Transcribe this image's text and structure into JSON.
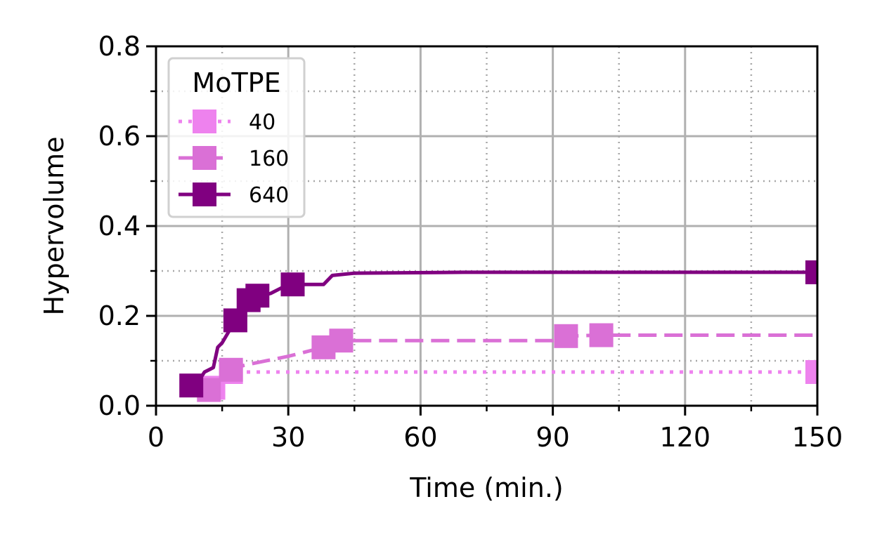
{
  "chart_data": {
    "type": "line",
    "xlabel": "Time (min.)",
    "ylabel": "Hypervolume",
    "xlim": [
      0,
      150
    ],
    "ylim": [
      0,
      0.8
    ],
    "x_major_ticks": [
      0,
      30,
      60,
      90,
      120,
      150
    ],
    "x_minor_ticks": [
      15,
      45,
      75,
      105,
      135
    ],
    "y_major_ticks": [
      0.0,
      0.2,
      0.4,
      0.6,
      0.8
    ],
    "y_minor_ticks": [
      0.1,
      0.3,
      0.5,
      0.7
    ],
    "x_tick_labels": [
      "0",
      "30",
      "60",
      "90",
      "120",
      "150"
    ],
    "y_tick_labels": [
      "0.0",
      "0.2",
      "0.4",
      "0.6",
      "0.8"
    ],
    "grid": {
      "major": "solid",
      "minor": "dotted"
    },
    "legend": {
      "title": "MoTPE",
      "placement": "top-left"
    },
    "series": [
      {
        "name": "40",
        "color": "#ee82ee",
        "line_style": "dotted",
        "marker": "square",
        "points": [
          [
            13,
            0.04
          ],
          [
            17,
            0.075
          ],
          [
            20,
            0.075
          ],
          [
            150,
            0.075
          ]
        ],
        "marker_points": [
          [
            13,
            0.04
          ],
          [
            17,
            0.075
          ],
          [
            150,
            0.075
          ]
        ]
      },
      {
        "name": "160",
        "color": "#da70d6",
        "line_style": "dashed",
        "marker": "square",
        "points": [
          [
            12,
            0.035
          ],
          [
            17,
            0.08
          ],
          [
            20,
            0.09
          ],
          [
            30,
            0.11
          ],
          [
            38,
            0.13
          ],
          [
            42,
            0.145
          ],
          [
            90,
            0.145
          ],
          [
            93,
            0.155
          ],
          [
            101,
            0.157
          ],
          [
            150,
            0.157
          ]
        ],
        "marker_points": [
          [
            12,
            0.035
          ],
          [
            17,
            0.08
          ],
          [
            38,
            0.13
          ],
          [
            42,
            0.145
          ],
          [
            93,
            0.155
          ],
          [
            101,
            0.157
          ]
        ]
      },
      {
        "name": "640",
        "color": "#800080",
        "line_style": "solid",
        "marker": "square",
        "points": [
          [
            8,
            0.045
          ],
          [
            10,
            0.06
          ],
          [
            11,
            0.075
          ],
          [
            13,
            0.085
          ],
          [
            14,
            0.13
          ],
          [
            15,
            0.14
          ],
          [
            18,
            0.19
          ],
          [
            20,
            0.23
          ],
          [
            22,
            0.24
          ],
          [
            24,
            0.245
          ],
          [
            26,
            0.25
          ],
          [
            30,
            0.27
          ],
          [
            38,
            0.27
          ],
          [
            40,
            0.29
          ],
          [
            45,
            0.295
          ],
          [
            70,
            0.297
          ],
          [
            150,
            0.297
          ]
        ],
        "marker_points": [
          [
            8,
            0.045
          ],
          [
            18,
            0.19
          ],
          [
            21,
            0.235
          ],
          [
            23,
            0.245
          ],
          [
            31,
            0.27
          ],
          [
            150,
            0.297
          ]
        ]
      }
    ]
  }
}
